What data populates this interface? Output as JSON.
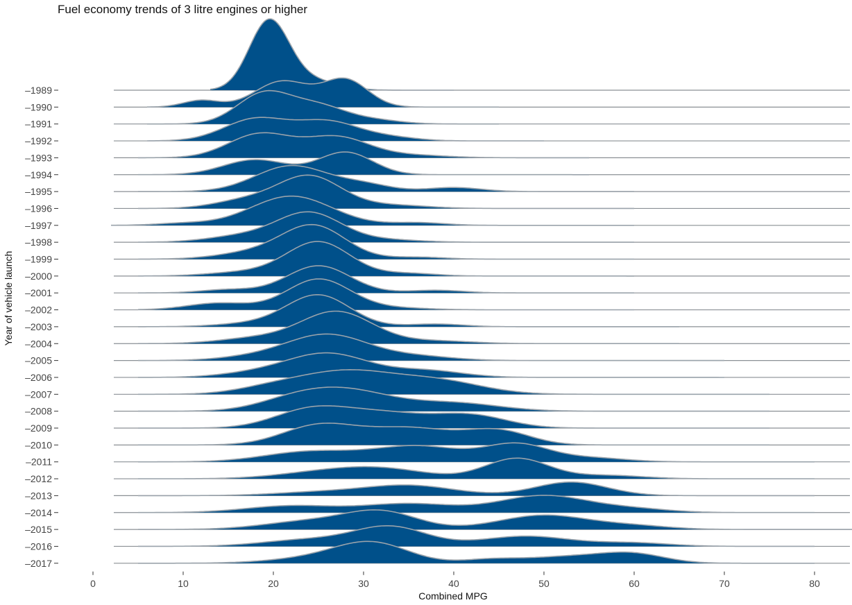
{
  "chart_data": {
    "type": "ridgeline",
    "title": "Fuel economy trends of 3 litre engines or higher",
    "xlabel": "Combined MPG",
    "ylabel": "Year of vehicle launch",
    "xlim": [
      0,
      85
    ],
    "x_ticks": [
      0,
      10,
      20,
      30,
      40,
      50,
      60,
      70,
      80
    ],
    "fill_color": "#00508a",
    "line_color": "#9aa3ab",
    "baseline_color": "#8a8f94",
    "series": [
      {
        "year": "1989",
        "range": [
          13,
          40
        ],
        "peaks": [
          [
            19.5,
            1.0,
            2.2
          ],
          [
            24,
            0.15,
            3
          ]
        ]
      },
      {
        "year": "1990",
        "range": [
          6,
          45
        ],
        "peaks": [
          [
            12,
            0.1,
            2
          ],
          [
            21,
            0.38,
            3
          ],
          [
            28,
            0.4,
            2.5
          ]
        ]
      },
      {
        "year": "1991",
        "range": [
          6,
          45
        ],
        "peaks": [
          [
            19,
            0.45,
            3
          ],
          [
            25,
            0.25,
            3
          ],
          [
            31,
            0.06,
            3
          ]
        ]
      },
      {
        "year": "1992",
        "range": [
          6,
          50
        ],
        "peaks": [
          [
            18,
            0.32,
            3.5
          ],
          [
            26,
            0.28,
            3.5
          ],
          [
            33,
            0.05,
            3
          ]
        ]
      },
      {
        "year": "1993",
        "range": [
          5,
          55
        ],
        "peaks": [
          [
            18.5,
            0.35,
            3.5
          ],
          [
            27,
            0.3,
            3.5
          ],
          [
            35,
            0.04,
            4
          ]
        ]
      },
      {
        "year": "1994",
        "range": [
          5,
          55
        ],
        "peaks": [
          [
            18,
            0.22,
            3.5
          ],
          [
            28,
            0.33,
            3
          ]
        ]
      },
      {
        "year": "1995",
        "range": [
          5,
          60
        ],
        "peaks": [
          [
            22,
            0.38,
            4
          ],
          [
            30,
            0.1,
            3
          ],
          [
            40,
            0.06,
            3
          ]
        ]
      },
      {
        "year": "1996",
        "range": [
          5,
          60
        ],
        "peaks": [
          [
            17,
            0.12,
            3.5
          ],
          [
            24,
            0.47,
            3.5
          ],
          [
            33,
            0.05,
            4
          ]
        ]
      },
      {
        "year": "1997",
        "range": [
          2,
          60
        ],
        "peaks": [
          [
            10,
            0.03,
            3
          ],
          [
            22,
            0.43,
            4.5
          ],
          [
            36,
            0.04,
            3
          ]
        ]
      },
      {
        "year": "1998",
        "range": [
          5,
          60
        ],
        "peaks": [
          [
            17,
            0.1,
            4
          ],
          [
            24,
            0.42,
            3.5
          ],
          [
            32,
            0.04,
            4
          ]
        ]
      },
      {
        "year": "1999",
        "range": [
          5,
          60
        ],
        "peaks": [
          [
            18,
            0.1,
            4
          ],
          [
            24.5,
            0.48,
            3.5
          ],
          [
            36,
            0.03,
            3
          ]
        ]
      },
      {
        "year": "2000",
        "range": [
          5,
          60
        ],
        "peaks": [
          [
            17,
            0.06,
            4
          ],
          [
            25,
            0.5,
            3.5
          ],
          [
            35,
            0.04,
            3
          ]
        ]
      },
      {
        "year": "2001",
        "range": [
          5,
          60
        ],
        "peaks": [
          [
            15,
            0.05,
            3
          ],
          [
            25,
            0.4,
            3.5
          ],
          [
            38,
            0.04,
            3
          ]
        ]
      },
      {
        "year": "2002",
        "range": [
          5,
          60
        ],
        "peaks": [
          [
            14,
            0.1,
            3.5
          ],
          [
            25,
            0.45,
            3.5
          ],
          [
            33,
            0.03,
            4
          ]
        ]
      },
      {
        "year": "2003",
        "range": [
          5,
          65
        ],
        "peaks": [
          [
            18,
            0.05,
            4
          ],
          [
            25,
            0.46,
            3.5
          ],
          [
            38,
            0.04,
            3
          ]
        ]
      },
      {
        "year": "2004",
        "range": [
          5,
          65
        ],
        "peaks": [
          [
            18,
            0.08,
            4
          ],
          [
            27,
            0.47,
            4
          ],
          [
            38,
            0.04,
            4
          ]
        ]
      },
      {
        "year": "2005",
        "range": [
          5,
          70
        ],
        "peaks": [
          [
            18,
            0.05,
            4
          ],
          [
            26,
            0.38,
            4.5
          ],
          [
            36,
            0.06,
            4
          ]
        ]
      },
      {
        "year": "2006",
        "range": [
          5,
          70
        ],
        "peaks": [
          [
            18,
            0.06,
            4
          ],
          [
            26,
            0.35,
            4.5
          ],
          [
            37,
            0.1,
            4
          ]
        ]
      },
      {
        "year": "2007",
        "range": [
          5,
          75
        ],
        "peaks": [
          [
            20,
            0.1,
            4
          ],
          [
            28,
            0.32,
            5
          ],
          [
            38,
            0.2,
            5
          ]
        ]
      },
      {
        "year": "2008",
        "range": [
          5,
          75
        ],
        "peaks": [
          [
            22,
            0.12,
            4
          ],
          [
            28,
            0.3,
            5
          ],
          [
            40,
            0.12,
            5
          ]
        ]
      },
      {
        "year": "2009",
        "range": [
          5,
          75
        ],
        "peaks": [
          [
            24,
            0.25,
            4
          ],
          [
            32,
            0.22,
            5
          ],
          [
            42,
            0.18,
            4
          ]
        ]
      },
      {
        "year": "2010",
        "range": [
          5,
          75
        ],
        "peaks": [
          [
            25,
            0.28,
            4
          ],
          [
            35,
            0.25,
            5
          ],
          [
            45,
            0.2,
            3.5
          ]
        ]
      },
      {
        "year": "2011",
        "range": [
          5,
          80
        ],
        "peaks": [
          [
            24,
            0.15,
            5
          ],
          [
            36,
            0.23,
            5
          ],
          [
            47,
            0.25,
            3.5
          ],
          [
            55,
            0.06,
            4
          ]
        ]
      },
      {
        "year": "2012",
        "range": [
          5,
          80
        ],
        "peaks": [
          [
            25,
            0.08,
            5
          ],
          [
            32,
            0.14,
            5
          ],
          [
            47,
            0.3,
            3.5
          ],
          [
            57,
            0.05,
            4
          ]
        ]
      },
      {
        "year": "2013",
        "range": [
          5,
          80
        ],
        "peaks": [
          [
            25,
            0.05,
            5
          ],
          [
            35,
            0.15,
            5
          ],
          [
            53,
            0.2,
            4
          ]
        ]
      },
      {
        "year": "2014",
        "range": [
          5,
          80
        ],
        "peaks": [
          [
            22,
            0.1,
            5
          ],
          [
            35,
            0.13,
            5
          ],
          [
            50,
            0.25,
            5
          ],
          [
            60,
            0.05,
            4
          ]
        ]
      },
      {
        "year": "2015",
        "range": [
          5,
          85
        ],
        "peaks": [
          [
            24,
            0.12,
            5
          ],
          [
            32,
            0.25,
            4
          ],
          [
            50,
            0.21,
            5
          ],
          [
            60,
            0.05,
            4
          ]
        ]
      },
      {
        "year": "2016",
        "range": [
          5,
          80
        ],
        "peaks": [
          [
            24,
            0.1,
            5
          ],
          [
            33,
            0.28,
            4
          ],
          [
            48,
            0.15,
            5
          ],
          [
            60,
            0.05,
            4
          ]
        ]
      },
      {
        "year": "2017",
        "range": [
          5,
          80
        ],
        "peaks": [
          [
            25,
            0.08,
            5
          ],
          [
            31,
            0.28,
            4
          ],
          [
            44,
            0.05,
            3
          ],
          [
            53,
            0.1,
            5
          ],
          [
            60,
            0.12,
            3.5
          ]
        ]
      }
    ]
  }
}
